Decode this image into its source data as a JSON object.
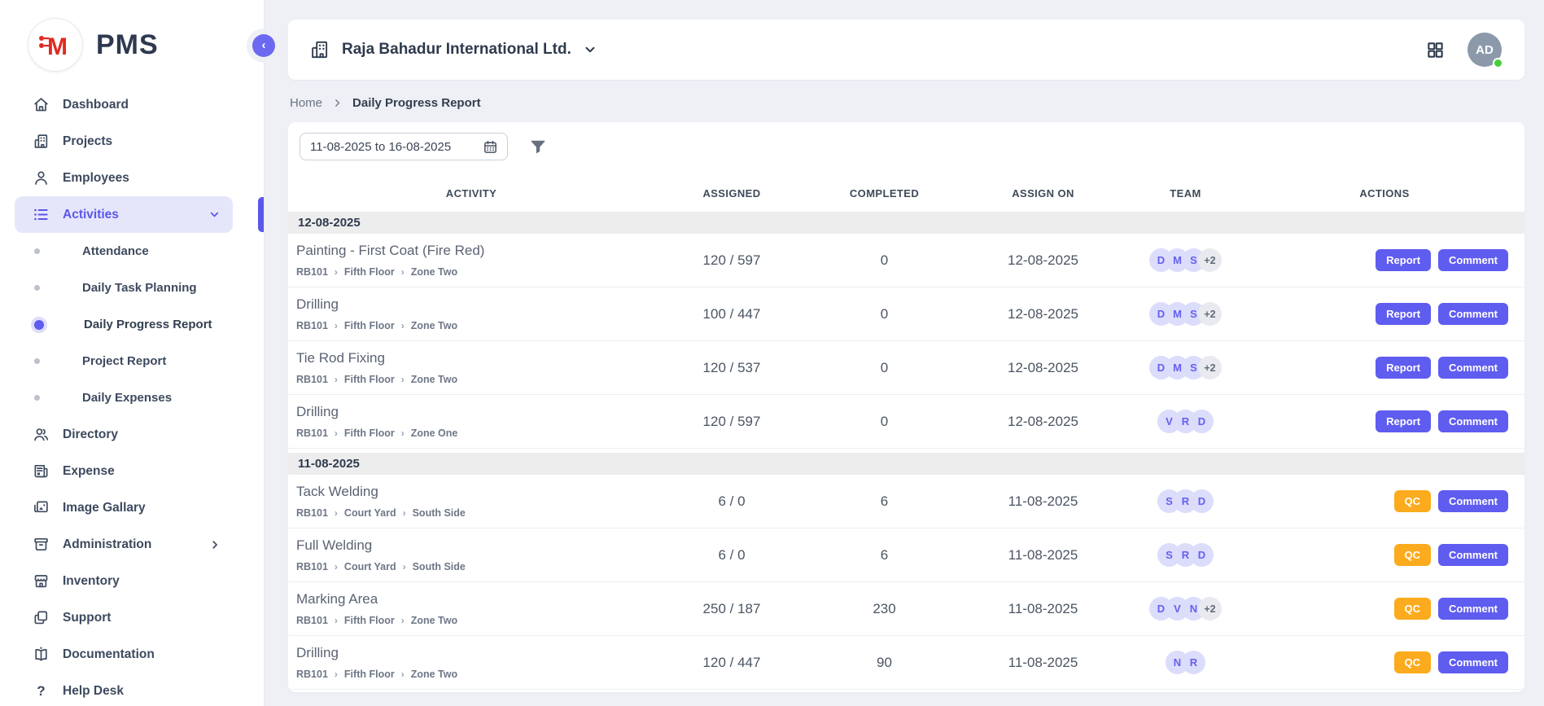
{
  "app": {
    "name": "PMS"
  },
  "topbar": {
    "company": "Raja Bahadur International Ltd.",
    "avatar_initials": "AD"
  },
  "breadcrumb": {
    "home": "Home",
    "current": "Daily Progress Report"
  },
  "filters": {
    "date_range": "11-08-2025 to 16-08-2025"
  },
  "sidebar": {
    "items": [
      {
        "label": "Dashboard"
      },
      {
        "label": "Projects"
      },
      {
        "label": "Employees"
      },
      {
        "label": "Activities"
      },
      {
        "label": "Directory"
      },
      {
        "label": "Expense"
      },
      {
        "label": "Image Gallary"
      },
      {
        "label": "Administration"
      },
      {
        "label": "Inventory"
      },
      {
        "label": "Support"
      },
      {
        "label": "Documentation"
      },
      {
        "label": "Help Desk"
      }
    ],
    "activities_sub": [
      {
        "label": "Attendance"
      },
      {
        "label": "Daily Task Planning"
      },
      {
        "label": "Daily Progress Report"
      },
      {
        "label": "Project Report"
      },
      {
        "label": "Daily Expenses"
      }
    ]
  },
  "table": {
    "columns": [
      "ACTIVITY",
      "ASSIGNED",
      "COMPLETED",
      "ASSIGN ON",
      "TEAM",
      "ACTIONS"
    ],
    "groups": [
      {
        "date": "12-08-2025",
        "rows": [
          {
            "activity": "Painting - First Coat (Fire Red)",
            "path": [
              "RB101",
              "Fifth Floor",
              "Zone Two"
            ],
            "assigned": "120 / 597",
            "completed": "0",
            "assign_on": "12-08-2025",
            "team": [
              "D",
              "M",
              "S",
              "+2"
            ],
            "actions": [
              {
                "label": "Report",
                "color": "indigo"
              },
              {
                "label": "Comment",
                "color": "indigo"
              }
            ]
          },
          {
            "activity": "Drilling",
            "path": [
              "RB101",
              "Fifth Floor",
              "Zone Two"
            ],
            "assigned": "100 / 447",
            "completed": "0",
            "assign_on": "12-08-2025",
            "team": [
              "D",
              "M",
              "S",
              "+2"
            ],
            "actions": [
              {
                "label": "Report",
                "color": "indigo"
              },
              {
                "label": "Comment",
                "color": "indigo"
              }
            ]
          },
          {
            "activity": "Tie Rod Fixing",
            "path": [
              "RB101",
              "Fifth Floor",
              "Zone Two"
            ],
            "assigned": "120 / 537",
            "completed": "0",
            "assign_on": "12-08-2025",
            "team": [
              "D",
              "M",
              "S",
              "+2"
            ],
            "actions": [
              {
                "label": "Report",
                "color": "indigo"
              },
              {
                "label": "Comment",
                "color": "indigo"
              }
            ]
          },
          {
            "activity": "Drilling",
            "path": [
              "RB101",
              "Fifth Floor",
              "Zone One"
            ],
            "assigned": "120 / 597",
            "completed": "0",
            "assign_on": "12-08-2025",
            "team": [
              "V",
              "R",
              "D"
            ],
            "actions": [
              {
                "label": "Report",
                "color": "indigo"
              },
              {
                "label": "Comment",
                "color": "indigo"
              }
            ]
          }
        ]
      },
      {
        "date": "11-08-2025",
        "rows": [
          {
            "activity": "Tack Welding",
            "path": [
              "RB101",
              "Court Yard",
              "South Side"
            ],
            "assigned": "6 / 0",
            "completed": "6",
            "assign_on": "11-08-2025",
            "team": [
              "S",
              "R",
              "D"
            ],
            "actions": [
              {
                "label": "QC",
                "color": "orange"
              },
              {
                "label": "Comment",
                "color": "indigo"
              }
            ]
          },
          {
            "activity": "Full Welding",
            "path": [
              "RB101",
              "Court Yard",
              "South Side"
            ],
            "assigned": "6 / 0",
            "completed": "6",
            "assign_on": "11-08-2025",
            "team": [
              "S",
              "R",
              "D"
            ],
            "actions": [
              {
                "label": "QC",
                "color": "orange"
              },
              {
                "label": "Comment",
                "color": "indigo"
              }
            ]
          },
          {
            "activity": "Marking Area",
            "path": [
              "RB101",
              "Fifth Floor",
              "Zone Two"
            ],
            "assigned": "250 / 187",
            "completed": "230",
            "assign_on": "11-08-2025",
            "team": [
              "D",
              "V",
              "N",
              "+2"
            ],
            "actions": [
              {
                "label": "QC",
                "color": "orange"
              },
              {
                "label": "Comment",
                "color": "indigo"
              }
            ]
          },
          {
            "activity": "Drilling",
            "path": [
              "RB101",
              "Fifth Floor",
              "Zone Two"
            ],
            "assigned": "120 / 447",
            "completed": "90",
            "assign_on": "11-08-2025",
            "team": [
              "N",
              "R"
            ],
            "actions": [
              {
                "label": "QC",
                "color": "orange"
              },
              {
                "label": "Comment",
                "color": "indigo"
              }
            ]
          }
        ]
      }
    ]
  },
  "colors": {
    "accent": "#5f5cf0",
    "accent_light": "#e6e6fb",
    "qc_orange": "#fbab1d",
    "online_green": "#46cf3a",
    "logo_red": "#e02b20"
  }
}
